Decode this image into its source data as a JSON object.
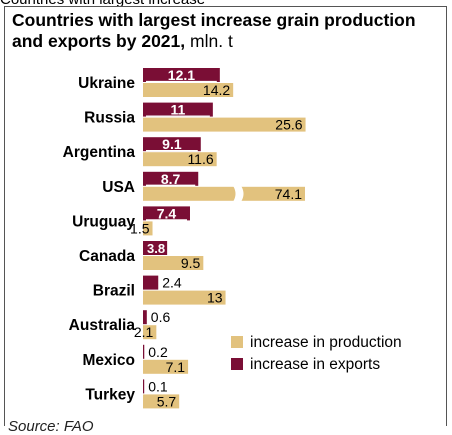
{
  "header_fragment": "Countries with largest increase",
  "title_bold": "Countries with largest increase grain production and exports by 2021,",
  "title_unit": "mln. t",
  "source": "Source: FAO",
  "colors": {
    "production": "#e2c27e",
    "exports": "#7a0e35"
  },
  "chart_data": {
    "type": "bar",
    "orientation": "horizontal",
    "categories": [
      "Ukraine",
      "Russia",
      "Argentina",
      "USA",
      "Uruguay",
      "Canada",
      "Brazil",
      "Australia",
      "Mexico",
      "Turkey"
    ],
    "series": [
      {
        "name": "increase in exports",
        "values": [
          12.1,
          11,
          9.1,
          8.7,
          7.4,
          3.8,
          2.4,
          0.6,
          0.2,
          0.1
        ]
      },
      {
        "name": "increase in production",
        "values": [
          14.2,
          25.6,
          11.6,
          74.1,
          1.5,
          9.5,
          13,
          2.1,
          7.1,
          5.7
        ]
      }
    ],
    "value_labels": {
      "exports": [
        "12.1",
        "11",
        "9.1",
        "8.7",
        "7.4",
        "3.8",
        "2.4",
        "0.6",
        "0.2",
        "0.1"
      ],
      "production": [
        "14.2",
        "25.6",
        "11.6",
        "74.1",
        "1.5",
        "9.5",
        "13",
        "2.1",
        "7.1",
        "5.7"
      ]
    },
    "axis_break": {
      "category": "USA",
      "series": "increase in production"
    },
    "legend": {
      "placement": "bottom-right",
      "entries": [
        "increase in production",
        "increase in exports"
      ]
    },
    "xlabel": "",
    "ylabel": ""
  }
}
